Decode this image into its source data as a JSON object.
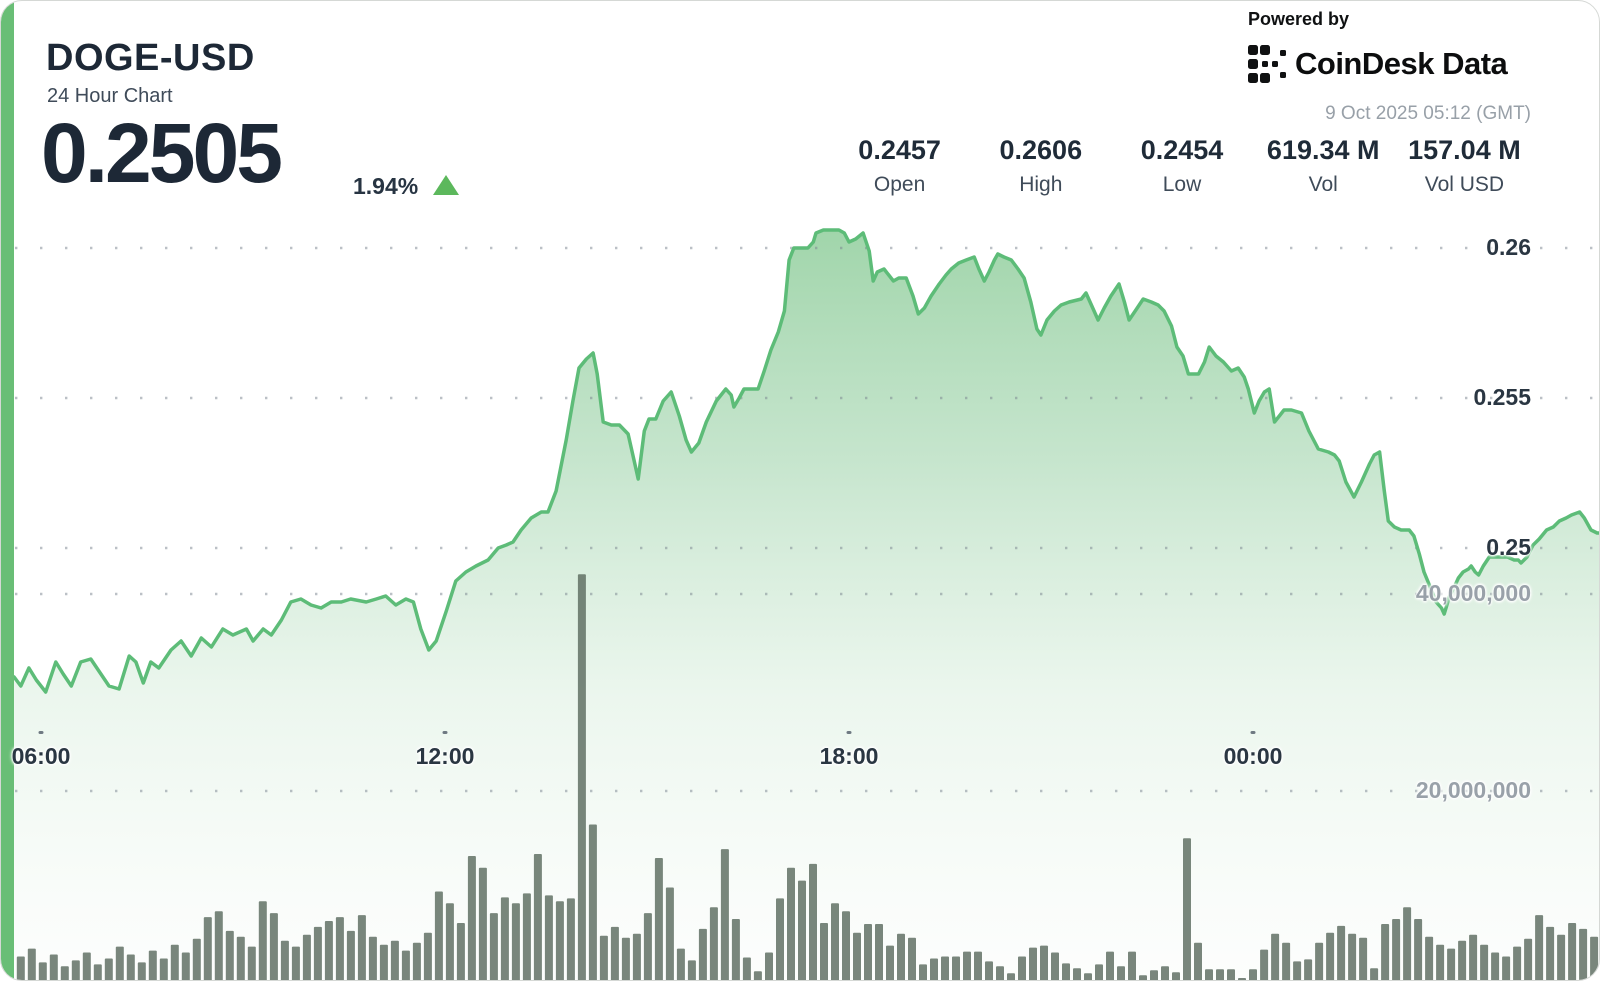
{
  "header": {
    "symbol": "DOGE-USD",
    "subtitle": "24 Hour Chart",
    "price": "0.2505",
    "change_percent": "1.94%",
    "change_direction": "up"
  },
  "branding": {
    "powered_by": "Powered by",
    "logo_text": "CoinDesk Data",
    "timestamp": "9 Oct 2025 05:12 (GMT)"
  },
  "stats": [
    {
      "value": "0.2457",
      "label": "Open"
    },
    {
      "value": "0.2606",
      "label": "High"
    },
    {
      "value": "0.2454",
      "label": "Low"
    },
    {
      "value": "619.34 M",
      "label": "Vol"
    },
    {
      "value": "157.04 M",
      "label": "Vol USD"
    }
  ],
  "colors": {
    "accent_stripe": "#69be76",
    "line_green": "#5dbc78",
    "up_green": "#5cb85c",
    "area_top": "rgba(140,204,152,0.85)",
    "area_mid": "rgba(176,219,186,0.72)",
    "area_low": "rgba(219,239,223,0.55)",
    "area_bottom": "rgba(246,250,247,0.25)",
    "volume_bar": "rgba(92,107,95,0.82)",
    "grid_dot": "#77828e",
    "tick_dash": "#4f5a66"
  },
  "chart_data": {
    "type": "area",
    "title": "DOGE-USD 24 Hour Chart",
    "legend": "none",
    "grid": "dotted horizontal",
    "x_axis": {
      "unit": "time (GMT)",
      "ticks": [
        {
          "label": "06:00",
          "t": 6
        },
        {
          "label": "12:00",
          "t": 12
        },
        {
          "label": "18:00",
          "t": 18
        },
        {
          "label": "00:00",
          "t": 24
        }
      ],
      "t_range": [
        5.6,
        29.17
      ]
    },
    "price_axis": {
      "side": "right",
      "ticks": [
        {
          "label": "0.26",
          "value": 0.26
        },
        {
          "label": "0.255",
          "value": 0.255
        },
        {
          "label": "0.25",
          "value": 0.25
        }
      ]
    },
    "volume_axis": {
      "side": "right",
      "ticks_millions": [
        {
          "label": "40,000,000",
          "value": 40
        },
        {
          "label": "20,000,000",
          "value": 20
        }
      ]
    },
    "summary": {
      "open": 0.2457,
      "high": 0.2606,
      "low": 0.2454,
      "volume": "619.34 M",
      "volume_usd": "157.04 M"
    },
    "price_series": [
      [
        5.6,
        0.2457
      ],
      [
        5.7,
        0.2454
      ],
      [
        5.82,
        0.246
      ],
      [
        5.93,
        0.2456
      ],
      [
        6.07,
        0.2452
      ],
      [
        6.22,
        0.2462
      ],
      [
        6.33,
        0.2458
      ],
      [
        6.45,
        0.2454
      ],
      [
        6.59,
        0.2462
      ],
      [
        6.74,
        0.2463
      ],
      [
        6.89,
        0.2458
      ],
      [
        7.01,
        0.2454
      ],
      [
        7.16,
        0.2453
      ],
      [
        7.31,
        0.2464
      ],
      [
        7.41,
        0.2462
      ],
      [
        7.52,
        0.2455
      ],
      [
        7.63,
        0.2462
      ],
      [
        7.75,
        0.246
      ],
      [
        7.93,
        0.2466
      ],
      [
        8.08,
        0.2469
      ],
      [
        8.23,
        0.2464
      ],
      [
        8.38,
        0.247
      ],
      [
        8.53,
        0.2467
      ],
      [
        8.7,
        0.2473
      ],
      [
        8.85,
        0.2471
      ],
      [
        9.05,
        0.2473
      ],
      [
        9.15,
        0.2469
      ],
      [
        9.3,
        0.2473
      ],
      [
        9.42,
        0.2471
      ],
      [
        9.57,
        0.2476
      ],
      [
        9.71,
        0.2482
      ],
      [
        9.86,
        0.2483
      ],
      [
        10.01,
        0.2481
      ],
      [
        10.16,
        0.248
      ],
      [
        10.31,
        0.2482
      ],
      [
        10.46,
        0.2482
      ],
      [
        10.6,
        0.2483
      ],
      [
        10.83,
        0.2482
      ],
      [
        10.98,
        0.2483
      ],
      [
        11.12,
        0.2484
      ],
      [
        11.27,
        0.2481
      ],
      [
        11.42,
        0.2483
      ],
      [
        11.53,
        0.2482
      ],
      [
        11.64,
        0.2473
      ],
      [
        11.76,
        0.2466
      ],
      [
        11.87,
        0.2469
      ],
      [
        12.02,
        0.2479
      ],
      [
        12.16,
        0.2489
      ],
      [
        12.31,
        0.2492
      ],
      [
        12.46,
        0.2494
      ],
      [
        12.64,
        0.2496
      ],
      [
        12.79,
        0.25
      ],
      [
        12.91,
        0.2501
      ],
      [
        13.01,
        0.2502
      ],
      [
        13.13,
        0.2506
      ],
      [
        13.28,
        0.251
      ],
      [
        13.43,
        0.2512
      ],
      [
        13.53,
        0.2512
      ],
      [
        13.65,
        0.2519
      ],
      [
        13.8,
        0.2536
      ],
      [
        13.9,
        0.2549
      ],
      [
        13.99,
        0.256
      ],
      [
        14.1,
        0.2563
      ],
      [
        14.2,
        0.2565
      ],
      [
        14.26,
        0.2558
      ],
      [
        14.35,
        0.2542
      ],
      [
        14.47,
        0.2541
      ],
      [
        14.59,
        0.2541
      ],
      [
        14.72,
        0.2538
      ],
      [
        14.81,
        0.2529
      ],
      [
        14.87,
        0.2523
      ],
      [
        14.96,
        0.2539
      ],
      [
        15.03,
        0.2543
      ],
      [
        15.13,
        0.2543
      ],
      [
        15.24,
        0.2549
      ],
      [
        15.36,
        0.2552
      ],
      [
        15.48,
        0.2544
      ],
      [
        15.58,
        0.2536
      ],
      [
        15.66,
        0.2532
      ],
      [
        15.77,
        0.2535
      ],
      [
        15.88,
        0.2542
      ],
      [
        16.03,
        0.2549
      ],
      [
        16.17,
        0.2553
      ],
      [
        16.25,
        0.2551
      ],
      [
        16.29,
        0.2547
      ],
      [
        16.37,
        0.255
      ],
      [
        16.44,
        0.2553
      ],
      [
        16.55,
        0.2553
      ],
      [
        16.65,
        0.2553
      ],
      [
        16.74,
        0.2559
      ],
      [
        16.84,
        0.2566
      ],
      [
        16.95,
        0.2572
      ],
      [
        17.04,
        0.2579
      ],
      [
        17.11,
        0.2596
      ],
      [
        17.18,
        0.26
      ],
      [
        17.29,
        0.26
      ],
      [
        17.39,
        0.26
      ],
      [
        17.47,
        0.2602
      ],
      [
        17.51,
        0.2605
      ],
      [
        17.62,
        0.2606
      ],
      [
        17.7,
        0.2606
      ],
      [
        17.85,
        0.2606
      ],
      [
        17.93,
        0.2605
      ],
      [
        18.0,
        0.2602
      ],
      [
        18.1,
        0.2603
      ],
      [
        18.21,
        0.2605
      ],
      [
        18.3,
        0.2599
      ],
      [
        18.36,
        0.2589
      ],
      [
        18.42,
        0.2592
      ],
      [
        18.52,
        0.2593
      ],
      [
        18.66,
        0.2589
      ],
      [
        18.74,
        0.259
      ],
      [
        18.85,
        0.259
      ],
      [
        18.95,
        0.2584
      ],
      [
        19.03,
        0.2578
      ],
      [
        19.12,
        0.258
      ],
      [
        19.22,
        0.2584
      ],
      [
        19.34,
        0.2588
      ],
      [
        19.44,
        0.2591
      ],
      [
        19.52,
        0.2593
      ],
      [
        19.63,
        0.2595
      ],
      [
        19.74,
        0.2596
      ],
      [
        19.86,
        0.2597
      ],
      [
        19.93,
        0.2593
      ],
      [
        20.01,
        0.2589
      ],
      [
        20.08,
        0.2592
      ],
      [
        20.16,
        0.2596
      ],
      [
        20.21,
        0.2598
      ],
      [
        20.3,
        0.2597
      ],
      [
        20.41,
        0.2596
      ],
      [
        20.51,
        0.2593
      ],
      [
        20.6,
        0.259
      ],
      [
        20.7,
        0.2582
      ],
      [
        20.79,
        0.2573
      ],
      [
        20.85,
        0.2571
      ],
      [
        20.94,
        0.2576
      ],
      [
        21.05,
        0.2579
      ],
      [
        21.15,
        0.2581
      ],
      [
        21.27,
        0.2582
      ],
      [
        21.45,
        0.2583
      ],
      [
        21.52,
        0.2585
      ],
      [
        21.6,
        0.2581
      ],
      [
        21.7,
        0.2576
      ],
      [
        21.79,
        0.258
      ],
      [
        21.89,
        0.2584
      ],
      [
        22.01,
        0.2588
      ],
      [
        22.09,
        0.2582
      ],
      [
        22.16,
        0.2576
      ],
      [
        22.25,
        0.2579
      ],
      [
        22.37,
        0.2583
      ],
      [
        22.49,
        0.2582
      ],
      [
        22.59,
        0.2581
      ],
      [
        22.68,
        0.2579
      ],
      [
        22.79,
        0.2574
      ],
      [
        22.87,
        0.2567
      ],
      [
        22.96,
        0.2564
      ],
      [
        23.04,
        0.2558
      ],
      [
        23.13,
        0.2558
      ],
      [
        23.19,
        0.2558
      ],
      [
        23.28,
        0.2562
      ],
      [
        23.35,
        0.2567
      ],
      [
        23.45,
        0.2564
      ],
      [
        23.56,
        0.2562
      ],
      [
        23.68,
        0.2559
      ],
      [
        23.78,
        0.256
      ],
      [
        23.87,
        0.2557
      ],
      [
        23.93,
        0.2553
      ],
      [
        24.02,
        0.2545
      ],
      [
        24.09,
        0.2549
      ],
      [
        24.17,
        0.2552
      ],
      [
        24.24,
        0.2553
      ],
      [
        24.32,
        0.2542
      ],
      [
        24.39,
        0.2544
      ],
      [
        24.46,
        0.2546
      ],
      [
        24.57,
        0.2546
      ],
      [
        24.72,
        0.2545
      ],
      [
        24.83,
        0.2539
      ],
      [
        24.97,
        0.2533
      ],
      [
        25.12,
        0.2532
      ],
      [
        25.21,
        0.2531
      ],
      [
        25.28,
        0.2529
      ],
      [
        25.38,
        0.2522
      ],
      [
        25.5,
        0.2517
      ],
      [
        25.61,
        0.2522
      ],
      [
        25.73,
        0.2528
      ],
      [
        25.8,
        0.2531
      ],
      [
        25.88,
        0.2532
      ],
      [
        25.95,
        0.2519
      ],
      [
        26.01,
        0.2509
      ],
      [
        26.1,
        0.2507
      ],
      [
        26.2,
        0.2506
      ],
      [
        26.32,
        0.2506
      ],
      [
        26.39,
        0.2504
      ],
      [
        26.47,
        0.2498
      ],
      [
        26.54,
        0.2492
      ],
      [
        26.65,
        0.2486
      ],
      [
        26.72,
        0.2482
      ],
      [
        26.8,
        0.248
      ],
      [
        26.84,
        0.2478
      ],
      [
        26.92,
        0.2484
      ],
      [
        26.99,
        0.2487
      ],
      [
        27.05,
        0.249
      ],
      [
        27.12,
        0.2492
      ],
      [
        27.2,
        0.2493
      ],
      [
        27.24,
        0.2494
      ],
      [
        27.3,
        0.2492
      ],
      [
        27.35,
        0.2491
      ],
      [
        27.42,
        0.2494
      ],
      [
        27.51,
        0.2497
      ],
      [
        27.58,
        0.2497
      ],
      [
        27.69,
        0.2497
      ],
      [
        27.78,
        0.2497
      ],
      [
        27.88,
        0.2496
      ],
      [
        27.94,
        0.2496
      ],
      [
        27.98,
        0.2495
      ],
      [
        28.07,
        0.2497
      ],
      [
        28.16,
        0.2501
      ],
      [
        28.25,
        0.2503
      ],
      [
        28.36,
        0.2506
      ],
      [
        28.46,
        0.2507
      ],
      [
        28.55,
        0.2509
      ],
      [
        28.65,
        0.251
      ],
      [
        28.73,
        0.2511
      ],
      [
        28.85,
        0.2512
      ],
      [
        28.92,
        0.251
      ],
      [
        29.02,
        0.2506
      ],
      [
        29.11,
        0.2505
      ],
      [
        29.17,
        0.2505
      ]
    ],
    "volume_series": {
      "t_start": 5.7,
      "t_step": 0.1634,
      "unit": "millions",
      "values": [
        3.2,
        4.0,
        2.6,
        3.4,
        2.2,
        2.8,
        3.6,
        2.4,
        3.0,
        4.2,
        3.4,
        2.6,
        3.8,
        3.0,
        4.4,
        3.6,
        5.0,
        7.2,
        7.8,
        5.8,
        5.2,
        4.2,
        8.8,
        7.6,
        4.8,
        4.2,
        5.4,
        6.2,
        6.8,
        7.2,
        5.8,
        7.4,
        5.2,
        4.4,
        4.8,
        3.8,
        4.6,
        5.6,
        9.8,
        8.6,
        6.6,
        13.4,
        12.2,
        7.6,
        9.2,
        8.6,
        9.6,
        13.6,
        9.4,
        8.8,
        9.1,
        42.0,
        16.6,
        5.3,
        6.2,
        5.1,
        5.5,
        7.6,
        13.2,
        10.2,
        4.0,
        2.8,
        6.0,
        8.2,
        14.1,
        7.0,
        3.1,
        1.7,
        3.6,
        9.1,
        12.2,
        10.9,
        12.6,
        6.6,
        8.6,
        7.8,
        5.6,
        6.5,
        6.5,
        4.3,
        5.5,
        5.1,
        2.4,
        3.0,
        3.2,
        3.2,
        3.7,
        3.7,
        2.7,
        2.2,
        1.5,
        3.2,
        4.1,
        4.3,
        3.6,
        2.5,
        2.0,
        1.5,
        2.4,
        3.7,
        2.2,
        3.7,
        1.3,
        1.8,
        2.2,
        1.6,
        15.2,
        4.6,
        1.9,
        1.9,
        1.9,
        1.0,
        1.9,
        3.9,
        5.5,
        4.6,
        2.7,
        2.9,
        4.6,
        5.6,
        6.3,
        5.5,
        5.1,
        2.0,
        6.5,
        7.0,
        8.2,
        7.0,
        5.2,
        4.4,
        4.0,
        4.8,
        5.4,
        4.4,
        3.6,
        3.2,
        4.2,
        5.0,
        7.4,
        6.2,
        5.4,
        6.6,
        6.0,
        5.2
      ]
    }
  }
}
